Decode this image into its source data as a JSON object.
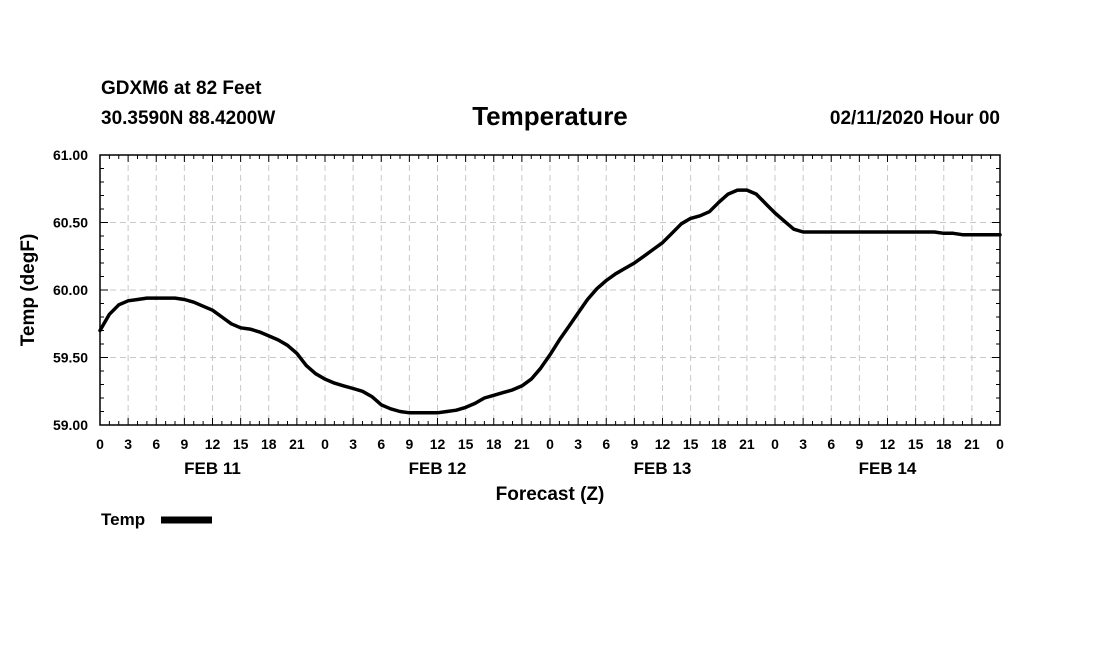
{
  "header": {
    "station": "GDXM6 at 82 Feet",
    "location": "30.3590N 88.4200W",
    "issued": "02/11/2020 Hour 00"
  },
  "chart_data": {
    "type": "line",
    "title": "Temperature",
    "xlabel": "Forecast (Z)",
    "ylabel": "Temp (degF)",
    "ylim": [
      59.0,
      61.0
    ],
    "xlim": [
      0,
      96
    ],
    "y_ticks": [
      "59.00",
      "59.50",
      "60.00",
      "60.50",
      "61.00"
    ],
    "x_tick_labels": [
      "0",
      "3",
      "6",
      "9",
      "12",
      "15",
      "18",
      "21",
      "0",
      "3",
      "6",
      "9",
      "12",
      "15",
      "18",
      "21",
      "0",
      "3",
      "6",
      "9",
      "12",
      "15",
      "18",
      "21",
      "0",
      "3",
      "6",
      "9",
      "12",
      "15",
      "18",
      "21",
      "0"
    ],
    "day_labels": [
      {
        "label": "FEB 11",
        "hour": 12
      },
      {
        "label": "FEB 12",
        "hour": 36
      },
      {
        "label": "FEB 13",
        "hour": 60
      },
      {
        "label": "FEB 14",
        "hour": 84
      }
    ],
    "grid": true,
    "legend": {
      "position": "bottom-left",
      "entries": [
        "Temp"
      ]
    },
    "series": [
      {
        "name": "Temp",
        "color": "#000000",
        "x": [
          0,
          1,
          2,
          3,
          4,
          5,
          6,
          7,
          8,
          9,
          10,
          11,
          12,
          13,
          14,
          15,
          16,
          17,
          18,
          19,
          20,
          21,
          22,
          23,
          24,
          25,
          26,
          27,
          28,
          29,
          30,
          31,
          32,
          33,
          34,
          35,
          36,
          37,
          38,
          39,
          40,
          41,
          42,
          43,
          44,
          45,
          46,
          47,
          48,
          49,
          50,
          51,
          52,
          53,
          54,
          55,
          56,
          57,
          58,
          59,
          60,
          61,
          62,
          63,
          64,
          65,
          66,
          67,
          68,
          69,
          70,
          71,
          72,
          73,
          74,
          75,
          76,
          77,
          78,
          79,
          80,
          81,
          82,
          83,
          84,
          85,
          86,
          87,
          88,
          89,
          90,
          91,
          92,
          93,
          94,
          95,
          96
        ],
        "values": [
          59.7,
          59.82,
          59.89,
          59.92,
          59.93,
          59.94,
          59.94,
          59.94,
          59.94,
          59.93,
          59.91,
          59.88,
          59.85,
          59.8,
          59.75,
          59.72,
          59.71,
          59.69,
          59.66,
          59.63,
          59.59,
          59.53,
          59.44,
          59.38,
          59.34,
          59.31,
          59.29,
          59.27,
          59.25,
          59.21,
          59.15,
          59.12,
          59.1,
          59.09,
          59.09,
          59.09,
          59.09,
          59.1,
          59.11,
          59.13,
          59.16,
          59.2,
          59.22,
          59.24,
          59.26,
          59.29,
          59.34,
          59.42,
          59.52,
          59.63,
          59.73,
          59.83,
          59.93,
          60.01,
          60.07,
          60.12,
          60.16,
          60.2,
          60.25,
          60.3,
          60.35,
          60.42,
          60.49,
          60.53,
          60.55,
          60.58,
          60.65,
          60.71,
          60.74,
          60.74,
          60.71,
          60.64,
          60.57,
          60.51,
          60.45,
          60.43,
          60.43,
          60.43,
          60.43,
          60.43,
          60.43,
          60.43,
          60.43,
          60.43,
          60.43,
          60.43,
          60.43,
          60.43,
          60.43,
          60.43,
          60.42,
          60.42,
          60.41,
          60.41,
          60.41,
          60.41,
          60.41
        ]
      }
    ]
  }
}
